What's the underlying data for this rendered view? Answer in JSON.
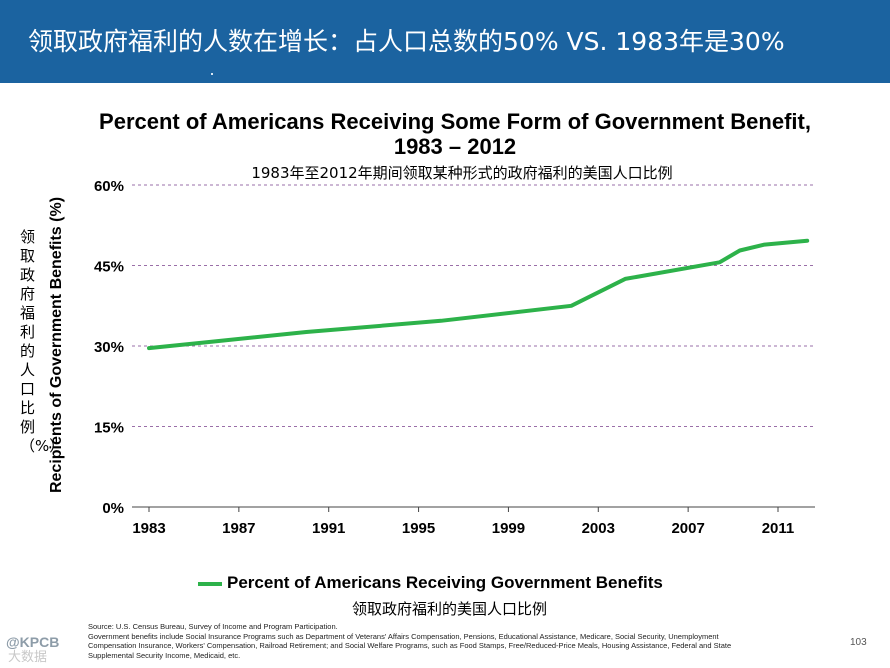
{
  "header": {
    "title": "领取政府福利的人数在增长：占人口总数的50% VS. 1983年是30%",
    "background_color": "#1b63a0"
  },
  "chart_data": {
    "type": "line",
    "title_line1": "Percent of Americans Receiving Some Form of Government Benefit,",
    "title_line2": "1983 – 2012",
    "subtitle_cn": "1983年至2012年期间领取某种形式的政府福利的美国人口比例",
    "ylabel": "Recipients of Government Benefits (%)",
    "ylabel_cn": "领取政府福利的人口比例（%）",
    "xlabel": "",
    "x_ticks": [
      1983,
      1987,
      1991,
      1995,
      1999,
      2003,
      2007,
      2011
    ],
    "x_tick_labels": [
      "1983",
      "1987",
      "1991",
      "1995",
      "1999",
      "2003",
      "2007",
      "2011"
    ],
    "xlim": [
      1983,
      2013
    ],
    "y_ticks": [
      0,
      15,
      30,
      45,
      60
    ],
    "y_tick_labels": [
      "0%",
      "15%",
      "30%",
      "45%",
      "60%"
    ],
    "ylim": [
      0,
      60
    ],
    "grid": "horizontal dashed",
    "series": [
      {
        "name": "Percent of Americans Receiving Government Benefits",
        "name_cn": "领取政府福利的美国人口比例",
        "color": "#2db24a",
        "x": [
          1983,
          1986,
          1990,
          1996,
          2001.8,
          2004.2,
          2008.4,
          2009.3,
          2010.4,
          2011.5,
          2012.3
        ],
        "values": [
          29.6,
          30.9,
          32.6,
          34.7,
          37.5,
          42.5,
          45.6,
          47.8,
          48.9,
          49.3,
          49.6
        ]
      }
    ]
  },
  "footnote": {
    "source": "Source: U.S. Census Bureau, Survey of Income and Program Participation.",
    "line2": "Government benefits include Social Insurance Programs such as Department of Veterans' Affairs Compensation, Pensions, Educational Assistance, Medicare, Social Security, Unemployment",
    "line3": "Compensation Insurance, Workers' Compensation, Railroad Retirement; and Social Welfare Programs, such as Food Stamps, Free/Reduced-Price Meals, Housing Assistance, Federal and State",
    "line4": "Supplemental Security Income, Medicaid, etc."
  },
  "page_number": "103",
  "logo_text": "@KPCB",
  "watermark": "大数据"
}
